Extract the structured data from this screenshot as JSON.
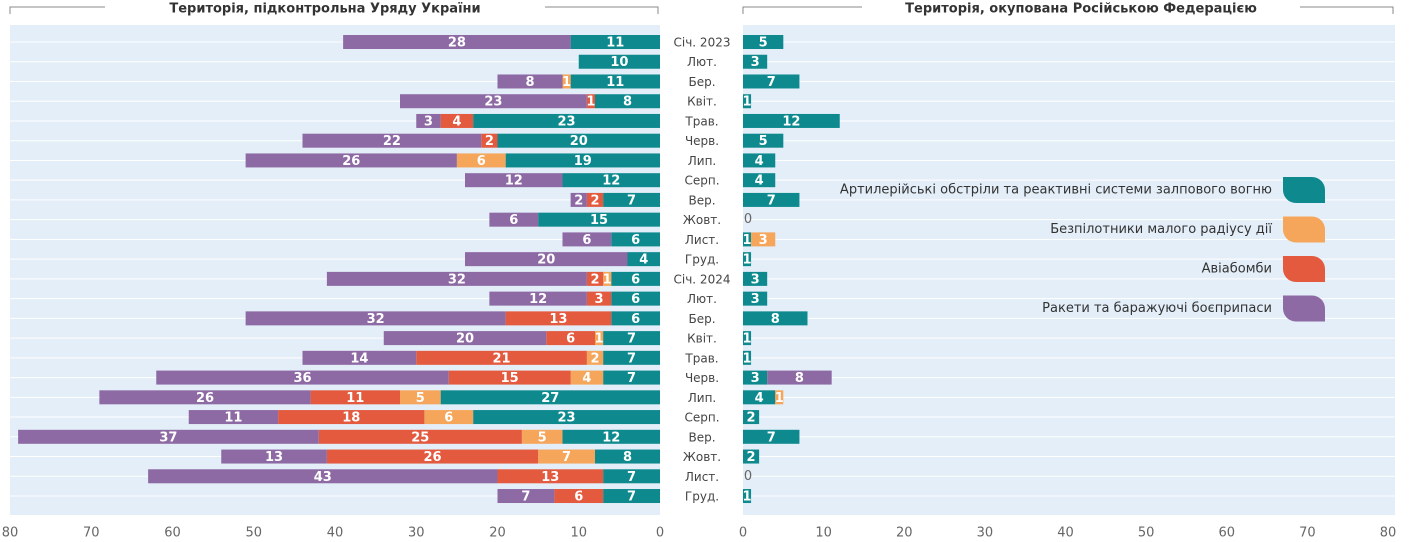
{
  "chart_data": [
    {
      "type": "bar",
      "orientation": "horizontal",
      "stacked": true,
      "direction": "left",
      "title": "Територія, підконтрольна Уряду України",
      "categories": [
        "Січ. 2023",
        "Лют.",
        "Бер.",
        "Квіт.",
        "Трав.",
        "Черв.",
        "Лип.",
        "Серп.",
        "Вер.",
        "Жовт.",
        "Лист.",
        "Груд.",
        "Січ. 2024",
        "Лют.",
        "Бер.",
        "Квіт.",
        "Трав.",
        "Черв.",
        "Лип.",
        "Серп.",
        "Вер.",
        "Жовт.",
        "Лист.",
        "Груд."
      ],
      "series": [
        {
          "name": "Артилерійські обстріли та реактивні системи залпового вогню",
          "color": "#0e8a8f",
          "values": [
            11,
            10,
            11,
            8,
            23,
            20,
            19,
            12,
            7,
            15,
            6,
            4,
            6,
            6,
            6,
            7,
            7,
            7,
            27,
            23,
            12,
            8,
            7,
            7
          ]
        },
        {
          "name": "Безпілотники малого радіусу дії",
          "color": "#f5a65b",
          "values": [
            null,
            null,
            1,
            null,
            null,
            null,
            6,
            null,
            null,
            null,
            null,
            null,
            1,
            null,
            null,
            1,
            2,
            4,
            5,
            6,
            5,
            7,
            null,
            null
          ]
        },
        {
          "name": "Авіабомби",
          "color": "#e35a3f",
          "values": [
            null,
            null,
            null,
            1,
            4,
            2,
            null,
            null,
            2,
            null,
            null,
            null,
            2,
            3,
            13,
            6,
            21,
            15,
            11,
            18,
            25,
            26,
            13,
            6
          ]
        },
        {
          "name": "Ракети та баражуючі боєприпаси",
          "color": "#8e6aa5",
          "values": [
            28,
            null,
            8,
            23,
            3,
            22,
            26,
            12,
            2,
            6,
            6,
            20,
            32,
            12,
            32,
            20,
            14,
            36,
            26,
            11,
            37,
            13,
            43,
            7
          ]
        }
      ],
      "xlim": [
        0,
        80
      ],
      "xticks": [
        0,
        10,
        20,
        30,
        40,
        50,
        60,
        70,
        80
      ],
      "legend": "right"
    },
    {
      "type": "bar",
      "orientation": "horizontal",
      "stacked": true,
      "direction": "right",
      "title": "Територія, окупована Російською Федерацією",
      "series": [
        {
          "color": "#0e8a8f",
          "values": [
            5,
            3,
            7,
            1,
            12,
            5,
            4,
            4,
            7,
            0,
            1,
            1,
            3,
            3,
            8,
            1,
            1,
            3,
            4,
            2,
            7,
            2,
            0,
            1
          ]
        },
        {
          "color": "#f5a65b",
          "values": [
            null,
            null,
            null,
            null,
            null,
            null,
            null,
            null,
            null,
            null,
            3,
            null,
            null,
            null,
            null,
            null,
            null,
            null,
            1,
            null,
            null,
            null,
            null,
            null
          ]
        },
        {
          "color": "#e35a3f",
          "values": [
            null,
            null,
            null,
            null,
            null,
            null,
            null,
            null,
            null,
            null,
            null,
            null,
            null,
            null,
            null,
            null,
            null,
            null,
            null,
            null,
            null,
            null,
            null,
            null
          ]
        },
        {
          "color": "#8e6aa5",
          "values": [
            null,
            null,
            null,
            null,
            null,
            null,
            null,
            null,
            null,
            null,
            null,
            null,
            null,
            null,
            null,
            null,
            null,
            8,
            null,
            null,
            null,
            null,
            null,
            null
          ]
        }
      ],
      "xlim": [
        0,
        80
      ],
      "xticks": [
        0,
        10,
        20,
        30,
        40,
        50,
        60,
        70,
        80
      ]
    }
  ]
}
